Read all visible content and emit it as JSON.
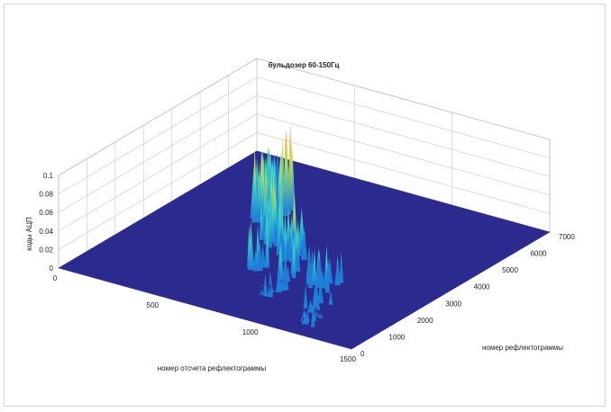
{
  "chart_data": {
    "type": "surface",
    "title": "бульдозер 60-150Гц",
    "xlabel": "номер отсчета рефлектограммы",
    "ylabel": "номер рефлектограммы",
    "zlabel": "коды АЦП",
    "xlim": [
      0,
      1500
    ],
    "ylim": [
      0,
      7000
    ],
    "zlim": [
      0,
      0.1
    ],
    "x_ticks": [
      "0",
      "500",
      "1000",
      "1500"
    ],
    "y_ticks": [
      "0",
      "1000",
      "2000",
      "3000",
      "4000",
      "5000",
      "6000",
      "7000"
    ],
    "z_ticks": [
      "0",
      "0.02",
      "0.04",
      "0.06",
      "0.08",
      "0.1"
    ],
    "grid": true,
    "colormap": [
      "#2b2a8f",
      "#1f7fd8",
      "#36c8cf",
      "#8ee27a",
      "#f4d23a",
      "#e8562a"
    ],
    "floor_color": "#2b2a8f",
    "peaks": [
      {
        "x": 420,
        "y": 4300,
        "z": 0.085
      },
      {
        "x": 470,
        "y": 4700,
        "z": 0.1
      },
      {
        "x": 400,
        "y": 4950,
        "z": 0.085
      },
      {
        "x": 560,
        "y": 3500,
        "z": 0.075
      },
      {
        "x": 620,
        "y": 3400,
        "z": 0.07
      },
      {
        "x": 720,
        "y": 3300,
        "z": 0.065
      },
      {
        "x": 780,
        "y": 3000,
        "z": 0.06
      },
      {
        "x": 870,
        "y": 2300,
        "z": 0.05
      },
      {
        "x": 980,
        "y": 2300,
        "z": 0.045
      },
      {
        "x": 1050,
        "y": 2300,
        "z": 0.04
      },
      {
        "x": 340,
        "y": 5100,
        "z": 0.06
      },
      {
        "x": 300,
        "y": 5500,
        "z": 0.045
      },
      {
        "x": 250,
        "y": 5900,
        "z": 0.04
      },
      {
        "x": 690,
        "y": 2200,
        "z": 0.055
      },
      {
        "x": 900,
        "y": 1400,
        "z": 0.03
      },
      {
        "x": 1130,
        "y": 1300,
        "z": 0.03
      },
      {
        "x": 1200,
        "y": 700,
        "z": 0.02
      },
      {
        "x": 520,
        "y": 4000,
        "z": 0.07
      }
    ]
  }
}
